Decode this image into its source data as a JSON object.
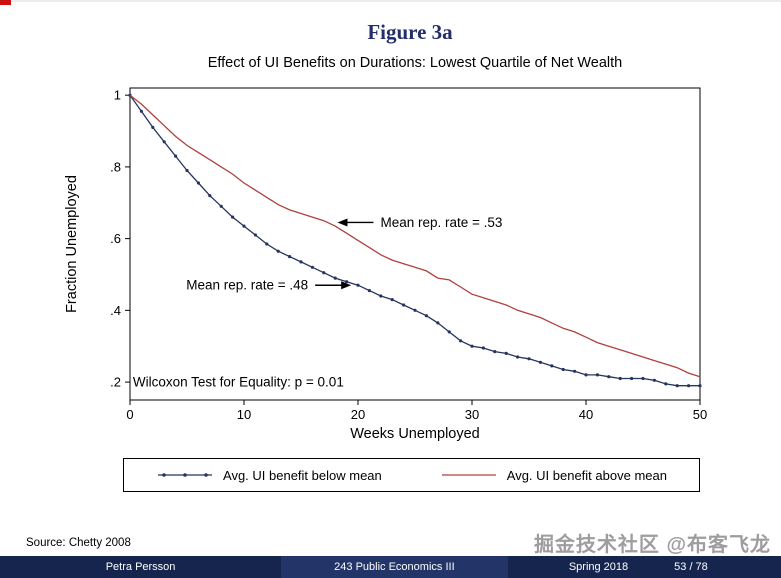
{
  "slide": {
    "figure_label": "Figure 3a",
    "source": "Source: Chetty 2008",
    "watermark": "掘金技术社区 @布客飞龙",
    "footer": {
      "author": "Petra Persson",
      "course": "243 Public Economics III",
      "term": "Spring 2018",
      "page": "53 / 78"
    },
    "colors": {
      "accent_navy": "#232e6b",
      "footer_bg": "#16254e",
      "footer_bg_mid": "#233568",
      "corner_red": "#cc1111",
      "watermark_gray": "#9d9d9d"
    }
  },
  "chart_data": {
    "type": "line",
    "title": "Effect of UI Benefits on Durations: Lowest Quartile of Net Wealth",
    "xlabel": "Weeks Unemployed",
    "ylabel": "Fraction Unemployed",
    "xlim": [
      0,
      50
    ],
    "ylim": [
      0.15,
      1.02
    ],
    "xticks": [
      0,
      10,
      20,
      30,
      40,
      50
    ],
    "yticks": [
      {
        "value": 0.2,
        "label": ".2"
      },
      {
        "value": 0.4,
        "label": ".4"
      },
      {
        "value": 0.6,
        "label": ".6"
      },
      {
        "value": 0.8,
        "label": ".8"
      },
      {
        "value": 1,
        "label": "1"
      }
    ],
    "grid": false,
    "legend_position": "bottom",
    "x": [
      0,
      1,
      2,
      3,
      4,
      5,
      6,
      7,
      8,
      9,
      10,
      11,
      12,
      13,
      14,
      15,
      16,
      17,
      18,
      19,
      20,
      21,
      22,
      23,
      24,
      25,
      26,
      27,
      28,
      29,
      30,
      31,
      32,
      33,
      34,
      35,
      36,
      37,
      38,
      39,
      40,
      41,
      42,
      43,
      44,
      45,
      46,
      47,
      48,
      49,
      50
    ],
    "series": [
      {
        "name": "Avg. UI benefit below mean",
        "color": "#26355f",
        "marker": true,
        "values": [
          1.0,
          0.955,
          0.91,
          0.87,
          0.83,
          0.79,
          0.755,
          0.72,
          0.69,
          0.66,
          0.635,
          0.61,
          0.585,
          0.565,
          0.55,
          0.535,
          0.52,
          0.505,
          0.49,
          0.48,
          0.47,
          0.455,
          0.44,
          0.43,
          0.415,
          0.4,
          0.385,
          0.365,
          0.34,
          0.315,
          0.3,
          0.295,
          0.285,
          0.28,
          0.27,
          0.265,
          0.255,
          0.245,
          0.235,
          0.23,
          0.22,
          0.22,
          0.215,
          0.21,
          0.21,
          0.21,
          0.205,
          0.195,
          0.19,
          0.19,
          0.19
        ]
      },
      {
        "name": "Avg. UI benefit above mean",
        "color": "#b0413d",
        "marker": false,
        "values": [
          1.0,
          0.975,
          0.945,
          0.915,
          0.885,
          0.86,
          0.84,
          0.82,
          0.8,
          0.78,
          0.755,
          0.735,
          0.715,
          0.695,
          0.68,
          0.67,
          0.66,
          0.65,
          0.635,
          0.615,
          0.595,
          0.575,
          0.555,
          0.54,
          0.53,
          0.52,
          0.51,
          0.49,
          0.485,
          0.465,
          0.445,
          0.435,
          0.425,
          0.415,
          0.4,
          0.39,
          0.38,
          0.365,
          0.35,
          0.34,
          0.325,
          0.31,
          0.3,
          0.29,
          0.28,
          0.27,
          0.26,
          0.25,
          0.24,
          0.225,
          0.215
        ]
      }
    ],
    "annotations": [
      {
        "text": "Mean rep. rate = .53",
        "arrow": "left",
        "x": 18.2,
        "y": 0.645
      },
      {
        "text": "Mean rep. rate = .48",
        "arrow": "right",
        "x": 19.4,
        "y": 0.47
      },
      {
        "text": "Wilcoxon Test for Equality: p = 0.01",
        "arrow": "none",
        "x": 0.25,
        "y": 0.2
      }
    ]
  }
}
